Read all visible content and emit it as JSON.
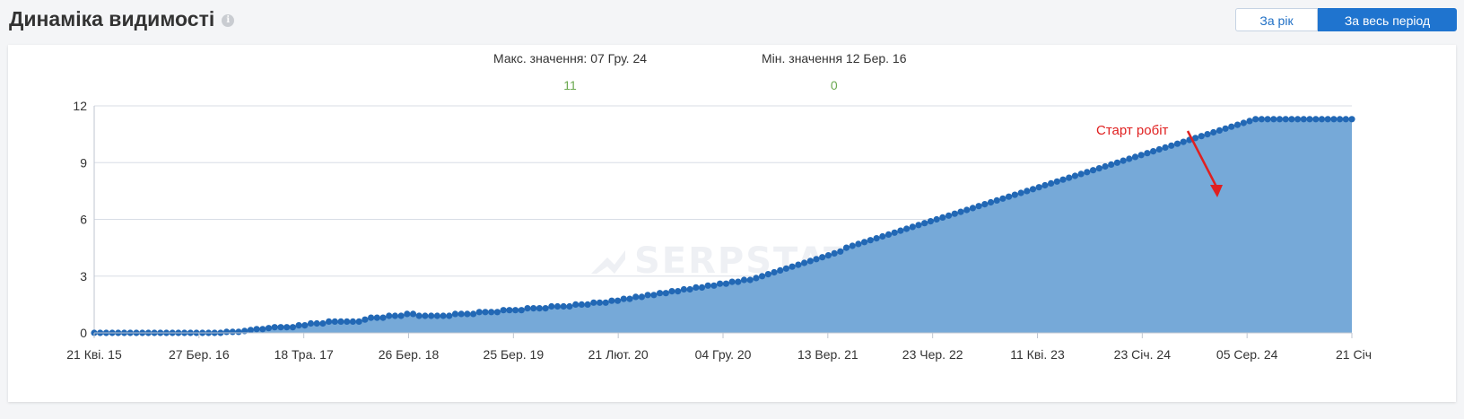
{
  "header": {
    "title": "Динаміка видимості",
    "info_icon": "info-icon"
  },
  "period_toggle": {
    "year_label": "За рік",
    "all_label": "За весь період",
    "active": "all"
  },
  "stats": {
    "max_label": "Макс. значення: 07 Гру. 24",
    "max_value": "11",
    "min_label": "Мін. значення 12 Бер. 16",
    "min_value": "0"
  },
  "watermark": "SERPSTAT",
  "colors": {
    "area": "#76a9d8",
    "line": "#2e6db4",
    "point": "#2268b5",
    "markers": "#6aa84f",
    "annotation": "#e02020",
    "accent": "#1f74cf"
  },
  "chart_data": {
    "type": "area",
    "ylim": [
      0,
      12
    ],
    "yticks": [
      0,
      3,
      6,
      9,
      12
    ],
    "grid": true,
    "xtick_labels": [
      "21 Кві. 15",
      "27 Бер. 16",
      "18 Тра. 17",
      "26 Бер. 18",
      "25 Бер. 19",
      "21 Лют. 20",
      "04 Гру. 20",
      "13 Вер. 21",
      "23 Чер. 22",
      "11 Кві. 23",
      "23 Січ. 24",
      "05 Сер. 24",
      "21 Січ"
    ],
    "annotation": {
      "text": "Старт робіт"
    },
    "values": [
      0,
      0,
      0,
      0,
      0,
      0,
      0,
      0,
      0,
      0,
      0,
      0,
      0,
      0,
      0,
      0,
      0,
      0,
      0,
      0,
      0,
      0,
      0.05,
      0.05,
      0.05,
      0.1,
      0.15,
      0.2,
      0.2,
      0.25,
      0.3,
      0.3,
      0.3,
      0.3,
      0.4,
      0.4,
      0.5,
      0.5,
      0.5,
      0.6,
      0.6,
      0.6,
      0.6,
      0.6,
      0.6,
      0.7,
      0.8,
      0.8,
      0.8,
      0.9,
      0.9,
      0.9,
      1.0,
      1.0,
      0.9,
      0.9,
      0.9,
      0.9,
      0.9,
      0.9,
      1.0,
      1.0,
      1.0,
      1.0,
      1.1,
      1.1,
      1.1,
      1.1,
      1.2,
      1.2,
      1.2,
      1.2,
      1.3,
      1.3,
      1.3,
      1.3,
      1.4,
      1.4,
      1.4,
      1.4,
      1.5,
      1.5,
      1.5,
      1.6,
      1.6,
      1.6,
      1.7,
      1.7,
      1.8,
      1.8,
      1.9,
      1.9,
      2.0,
      2.0,
      2.1,
      2.1,
      2.2,
      2.2,
      2.3,
      2.3,
      2.4,
      2.4,
      2.5,
      2.5,
      2.6,
      2.6,
      2.7,
      2.7,
      2.8,
      2.8,
      2.9,
      3.0,
      3.1,
      3.2,
      3.3,
      3.4,
      3.5,
      3.6,
      3.7,
      3.8,
      3.9,
      4.0,
      4.1,
      4.2,
      4.3,
      4.5,
      4.6,
      4.7,
      4.8,
      4.9,
      5.0,
      5.1,
      5.2,
      5.3,
      5.4,
      5.5,
      5.6,
      5.7,
      5.8,
      5.9,
      6.0,
      6.1,
      6.2,
      6.3,
      6.4,
      6.5,
      6.6,
      6.7,
      6.8,
      6.9,
      7.0,
      7.1,
      7.2,
      7.3,
      7.4,
      7.5,
      7.6,
      7.7,
      7.8,
      7.9,
      8.0,
      8.1,
      8.2,
      8.3,
      8.4,
      8.5,
      8.6,
      8.7,
      8.8,
      8.9,
      9.0,
      9.1,
      9.2,
      9.3,
      9.4,
      9.5,
      9.6,
      9.7,
      9.8,
      9.9,
      10.0,
      10.1,
      10.2,
      10.3,
      10.4,
      10.5,
      10.6,
      10.7,
      10.8,
      10.9,
      11.0,
      11.1,
      11.2,
      11.3,
      11.3,
      11.3,
      11.3,
      11.3,
      11.3,
      11.3,
      11.3,
      11.3,
      11.3,
      11.3,
      11.3,
      11.3,
      11.3,
      11.3,
      11.3,
      11.3
    ]
  }
}
